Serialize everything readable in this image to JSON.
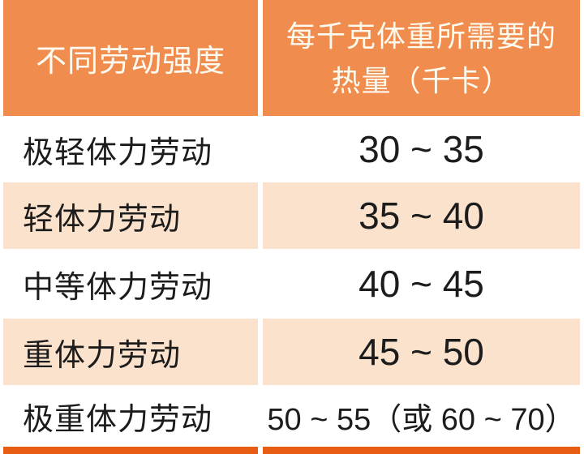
{
  "chart_data": {
    "type": "table",
    "columns": [
      "不同劳动强度",
      "每千克体重所需要的热量（千卡）"
    ],
    "rows": [
      [
        "极轻体力劳动",
        "30 ~ 35"
      ],
      [
        "轻体力劳动",
        "35 ~ 40"
      ],
      [
        "中等体力劳动",
        "40 ~ 45"
      ],
      [
        "重体力劳动",
        "45 ~ 50"
      ],
      [
        "极重体力劳动",
        "50 ~ 55（或 60 ~ 70）"
      ]
    ]
  },
  "header": {
    "intensity": "不同劳动强度",
    "calories_line1": "每千克体重所需要的",
    "calories_line2": "热量（千卡）"
  },
  "rows": [
    {
      "label": "极轻体力劳动",
      "value": "30 ~ 35"
    },
    {
      "label": "轻体力劳动",
      "value": "35 ~ 40"
    },
    {
      "label": "中等体力劳动",
      "value": "40 ~ 45"
    },
    {
      "label": "重体力劳动",
      "value": "45 ~ 50"
    },
    {
      "label": "极重体力劳动",
      "value": "50 ~ 55（或 60 ~ 70）"
    }
  ],
  "colors": {
    "header_bg": "#F08C4D",
    "header_text": "#FDFAF0",
    "row_alt_bg": "#FBE2CD",
    "row_text": "#1C1C1C",
    "bottom_bar": "#E65C12",
    "page_bg": "#FFFFFF"
  }
}
